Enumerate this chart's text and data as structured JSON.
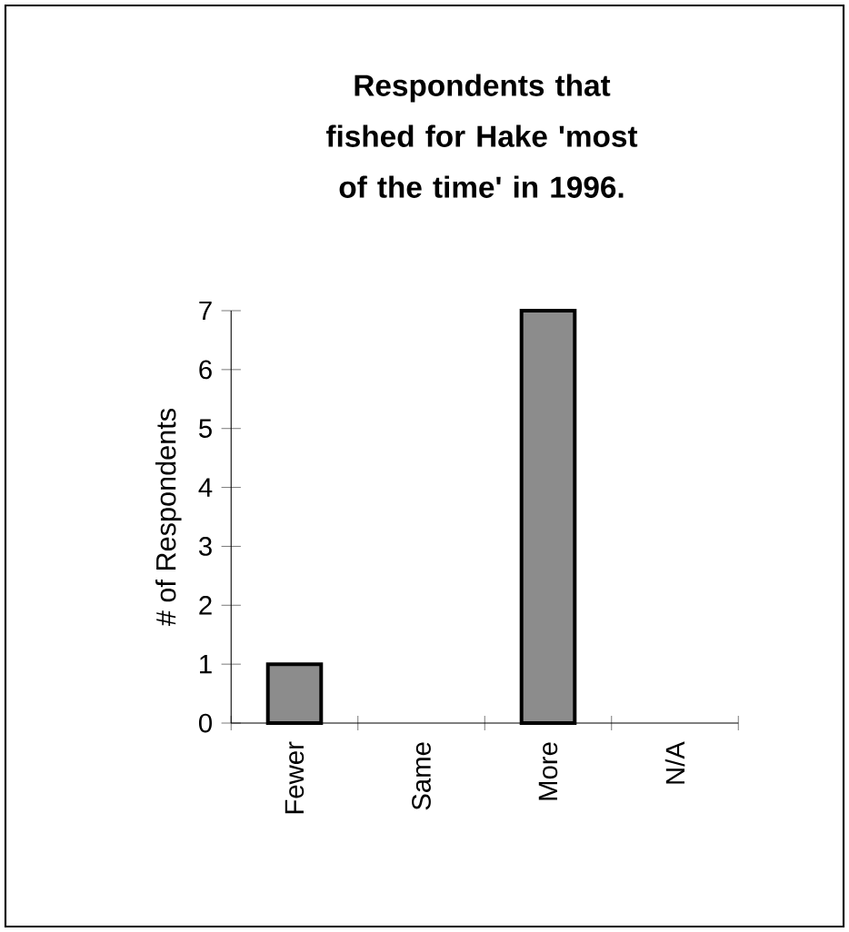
{
  "chart_data": {
    "type": "bar",
    "title": "Respondents that fished for Hake 'most of the time' in 1996.",
    "ylabel": "# of Respondents",
    "categories": [
      "Fewer",
      "Same",
      "More",
      "N/A"
    ],
    "values": [
      1,
      0,
      7,
      0
    ],
    "color": "#8c8c8c",
    "ylim": [
      0,
      7
    ],
    "yticks": [
      0,
      1,
      2,
      3,
      4,
      5,
      6,
      7
    ],
    "grid": false
  }
}
